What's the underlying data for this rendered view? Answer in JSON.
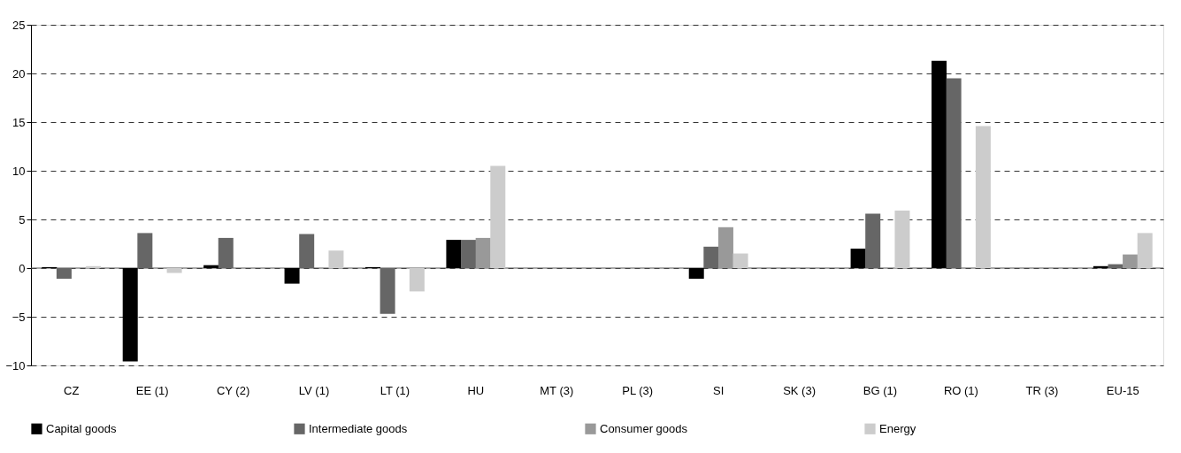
{
  "chart_data": {
    "type": "bar",
    "categories": [
      "CZ",
      "EE (1)",
      "CY (2)",
      "LV (1)",
      "LT (1)",
      "HU",
      "MT (3)",
      "PL (3)",
      "SI",
      "SK (3)",
      "BG (1)",
      "RO (1)",
      "TR (3)",
      "EU-15"
    ],
    "series": [
      {
        "name": "Capital goods",
        "color": "#000000",
        "values": [
          0.1,
          -9.6,
          0.3,
          -1.6,
          0.1,
          2.9,
          null,
          null,
          -1.1,
          null,
          2.0,
          21.3,
          null,
          0.2
        ]
      },
      {
        "name": "Intermediate goods",
        "color": "#666666",
        "values": [
          -1.1,
          3.6,
          3.1,
          3.5,
          -4.7,
          2.9,
          null,
          null,
          2.2,
          null,
          5.6,
          19.5,
          null,
          0.4
        ]
      },
      {
        "name": "Consumer goods",
        "color": "#999999",
        "values": [
          null,
          null,
          null,
          null,
          null,
          3.1,
          null,
          null,
          4.2,
          null,
          null,
          null,
          null,
          1.4
        ]
      },
      {
        "name": "Energy",
        "color": "#cccccc",
        "values": [
          0.2,
          -0.5,
          null,
          1.8,
          -2.4,
          10.5,
          null,
          null,
          1.5,
          null,
          5.9,
          14.6,
          null,
          3.6
        ]
      }
    ],
    "ylim": [
      -10,
      25
    ],
    "yticks": [
      -10,
      -5,
      0,
      5,
      10,
      15,
      20,
      25
    ],
    "grid": "y",
    "legend": "bottom"
  }
}
